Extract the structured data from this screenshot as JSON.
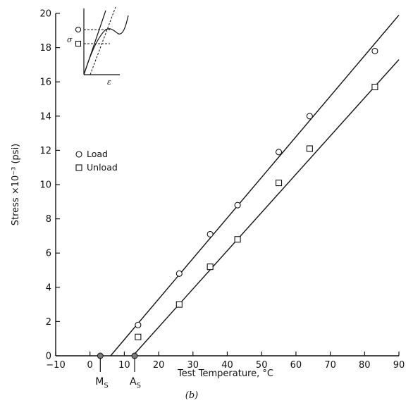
{
  "chart_data": {
    "type": "scatter",
    "xlabel": "Test Temperature, °C",
    "ylabel": "Stress ×10⁻³ (psi)",
    "caption": "(b)",
    "xlim": [
      -10,
      90
    ],
    "ylim": [
      0,
      20
    ],
    "x_ticks": [
      -10,
      0,
      10,
      20,
      30,
      40,
      50,
      60,
      70,
      80,
      90
    ],
    "y_ticks": [
      0,
      2,
      4,
      6,
      8,
      10,
      12,
      14,
      16,
      18,
      20
    ],
    "legend": {
      "placement": "left",
      "entries": [
        "Load",
        "Unload"
      ]
    },
    "series": [
      {
        "name": "Load",
        "marker": "circle",
        "points": [
          [
            14,
            1.8
          ],
          [
            26,
            4.8
          ],
          [
            35,
            7.1
          ],
          [
            43,
            8.8
          ],
          [
            55,
            11.9
          ],
          [
            64,
            14.0
          ],
          [
            83,
            17.8
          ]
        ],
        "fit_line": [
          [
            6,
            0
          ],
          [
            90,
            19.9
          ]
        ]
      },
      {
        "name": "Unload",
        "marker": "square",
        "points": [
          [
            14,
            1.1
          ],
          [
            26,
            3.0
          ],
          [
            35,
            5.2
          ],
          [
            43,
            6.8
          ],
          [
            55,
            10.1
          ],
          [
            64,
            12.1
          ],
          [
            83,
            15.7
          ]
        ],
        "fit_line": [
          [
            12.5,
            0
          ],
          [
            90,
            17.3
          ]
        ]
      }
    ],
    "annotations": [
      {
        "label": "M",
        "sub": "S",
        "x": 3
      },
      {
        "label": "A",
        "sub": "S",
        "x": 13
      }
    ],
    "inset": {
      "xlabel": "ε",
      "ylabel": "σ"
    }
  }
}
